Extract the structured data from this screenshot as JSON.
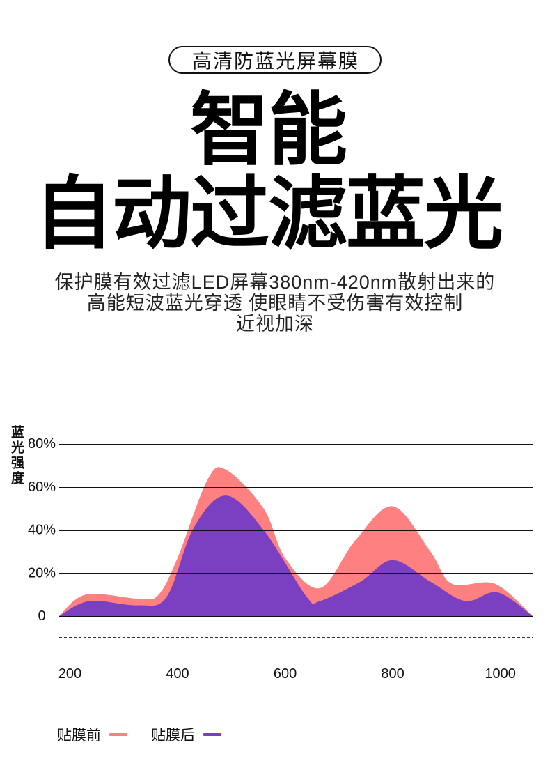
{
  "badge": {
    "label": "高清防蓝光屏幕膜"
  },
  "headline": {
    "line1": "智能",
    "line2": "自动过滤蓝光"
  },
  "description": {
    "lines": [
      "保护膜有效过滤LED屏幕380nm-420nm散射出来的",
      "高能短波蓝光穿透 使眼睛不受伤害有效控制",
      "近视加深"
    ]
  },
  "colors": {
    "text": "#111111",
    "background": "#ffffff"
  },
  "chart_data": {
    "type": "area",
    "ylabel": "蓝光强度",
    "xlim": [
      180,
      1060
    ],
    "ylim": [
      0,
      80
    ],
    "x_ticks": [
      200,
      400,
      600,
      800,
      1000
    ],
    "x_tick_labels": [
      "200",
      "400",
      "600",
      "800",
      "1000"
    ],
    "y_ticks": [
      0,
      20,
      40,
      60,
      80
    ],
    "y_tick_labels": [
      "0",
      "20%",
      "40%",
      "60%",
      "80%"
    ],
    "grid": true,
    "legend": "bottom-left",
    "series": [
      {
        "name": "贴膜前",
        "color": "#FF8080",
        "x": [
          180,
          230,
          330,
          365,
          400,
          455,
          490,
          560,
          600,
          665,
          730,
          800,
          870,
          910,
          990,
          1060
        ],
        "y": [
          0,
          10,
          8,
          10,
          27,
          63,
          68,
          50,
          27,
          13,
          35,
          51,
          30,
          15,
          15,
          0
        ]
      },
      {
        "name": "贴膜后",
        "color": "#7B3FC1",
        "x": [
          180,
          236,
          327,
          380,
          430,
          490,
          560,
          640,
          665,
          740,
          800,
          870,
          935,
          995,
          1060
        ],
        "y": [
          0,
          7,
          5,
          9,
          41,
          56,
          40,
          9,
          7,
          16,
          26,
          16,
          7,
          11,
          0
        ]
      }
    ]
  }
}
